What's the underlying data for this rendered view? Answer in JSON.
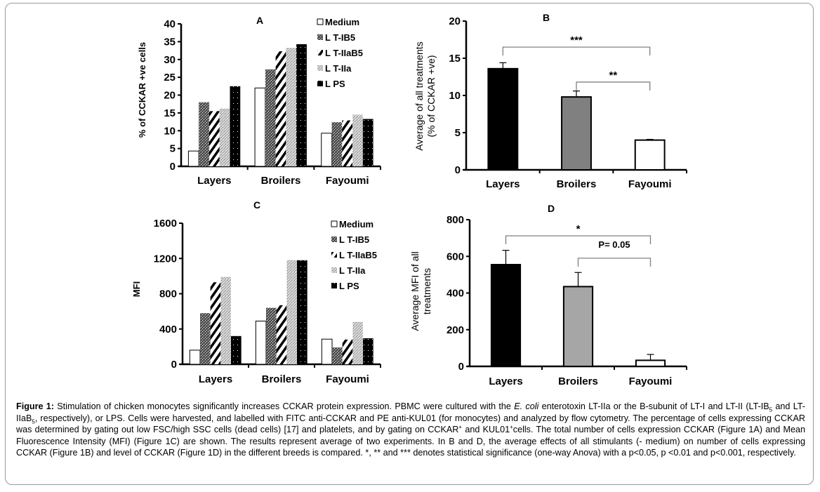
{
  "figure": {
    "caption": {
      "label": "Figure 1:",
      "p1": " Stimulation of chicken monocytes significantly increases CCKAR protein expression. PBMC were cultured with the ",
      "italic": "E. coli",
      "p2": " enterotoxin LT-IIa or the B-subunit of LT-I and LT-II (LT-IB",
      "sub1": "5",
      "p3": " and LT-IIaB",
      "sub2": "5",
      "p4": ", respectively), or LPS. Cells were harvested, and labelled with FITC anti-CCKAR and PE anti-KUL01 (for monocytes) and analyzed by flow cytometry. The percentage of cells expressing CCKAR was determined by gating out low FSC/high SSC cells (dead cells) [17] and platelets, and by gating on CCKAR",
      "sup1": "+",
      "p5": " and KUL01",
      "sup2": "+",
      "p6": "cells. The total number of cells expression CCKAR (Figure 1A) and Mean Fluorescence Intensity (MFI) (Figure 1C) are shown. The results represent average of two experiments. In B and D, the average effects of all stimulants (- medium) on number of cells expressing CCKAR (Figure 1B) and level of CCKAR (Figure 1D) in the different breeds is compared. *, ** and *** denotes statistical significance (one-way Anova) with a p<0.05, p <0.01 and p<0.001, respectively."
    }
  },
  "colors": {
    "black_bar": "#000000",
    "gray_bar_B": "#808080",
    "gray_bar_D": "#a6a6a6",
    "bracket": "#808080",
    "frame": "#9a9a9a"
  },
  "chart_data": [
    {
      "panel": "A",
      "type": "bar",
      "title": "A",
      "xlabel": "",
      "ylabel": "% of CCKAR +ve cells",
      "ylim": [
        0,
        40
      ],
      "yticks": [
        0,
        5,
        10,
        15,
        20,
        25,
        30,
        35,
        40
      ],
      "categories": [
        "Layers",
        "Broilers",
        "Fayoumi"
      ],
      "legend_position": "top-right",
      "series": [
        {
          "name": "Medium",
          "pattern": "white",
          "values": [
            4.3,
            22.0,
            9.3
          ]
        },
        {
          "name": "LT-IB5",
          "pattern": "dark-checker",
          "values": [
            18.0,
            27.2,
            12.4
          ]
        },
        {
          "name": "LT-IIaB5",
          "pattern": "diagonal",
          "values": [
            15.5,
            32.3,
            12.9
          ]
        },
        {
          "name": "LT-IIa",
          "pattern": "light-checker",
          "values": [
            16.2,
            33.3,
            14.5
          ]
        },
        {
          "name": "LPS",
          "pattern": "black-dotted",
          "values": [
            22.5,
            34.3,
            13.3
          ]
        }
      ],
      "legend_labels": [
        "Medium",
        "L T-IB5",
        "L T-IIaB5",
        "L T-IIa",
        "L PS"
      ]
    },
    {
      "panel": "B",
      "type": "bar",
      "title": "B",
      "xlabel": "",
      "ylabel": [
        "Average of all treatments",
        "(% of CCKAR +ve)"
      ],
      "ylim": [
        0,
        20
      ],
      "yticks": [
        0,
        5,
        10,
        15,
        20
      ],
      "categories": [
        "Layers",
        "Broilers",
        "Fayoumi"
      ],
      "values": [
        13.6,
        9.8,
        4.0
      ],
      "errors": [
        0.8,
        0.8,
        0.1
      ],
      "bar_fills": [
        "#000000",
        "#808080",
        "#ffffff"
      ],
      "annotations": [
        {
          "text": "***",
          "from": "Layers",
          "to": "Fayoumi",
          "level": 16.5
        },
        {
          "text": "**",
          "from": "Broilers",
          "to": "Fayoumi",
          "level": 11.8
        }
      ]
    },
    {
      "panel": "C",
      "type": "bar",
      "title": "C",
      "xlabel": "",
      "ylabel": "MFI",
      "ylim": [
        0,
        1600
      ],
      "yticks": [
        0,
        400,
        800,
        1200,
        1600
      ],
      "categories": [
        "Layers",
        "Broilers",
        "Fayoumi"
      ],
      "legend_position": "top-right",
      "series": [
        {
          "name": "Medium",
          "pattern": "white",
          "values": [
            160,
            490,
            285
          ]
        },
        {
          "name": "LT-IB5",
          "pattern": "dark-checker",
          "values": [
            580,
            640,
            190
          ]
        },
        {
          "name": "LT-IIaB5",
          "pattern": "diagonal",
          "values": [
            930,
            670,
            280
          ]
        },
        {
          "name": "LT-IIa",
          "pattern": "light-checker",
          "values": [
            990,
            1180,
            480
          ]
        },
        {
          "name": "LPS",
          "pattern": "black-dotted",
          "values": [
            320,
            1180,
            295
          ]
        }
      ],
      "legend_labels": [
        "Medium",
        "L T-IB5",
        "L T-IIaB5",
        "L T-IIa",
        "L PS"
      ]
    },
    {
      "panel": "D",
      "type": "bar",
      "title": "D",
      "xlabel": "",
      "ylabel": [
        "Average MFI of all",
        "treatments"
      ],
      "ylim": [
        0,
        800
      ],
      "yticks": [
        0,
        200,
        400,
        600,
        800
      ],
      "categories": [
        "Layers",
        "Broilers",
        "Fayoumi"
      ],
      "values": [
        555,
        435,
        33
      ],
      "errors": [
        78,
        77,
        32
      ],
      "bar_fills": [
        "#000000",
        "#a6a6a6",
        "#ffffff"
      ],
      "annotations": [
        {
          "text": "*",
          "from": "Layers",
          "to": "Fayoumi",
          "level": 712
        },
        {
          "text": "P= 0.05",
          "from": "Broilers",
          "to": "Fayoumi",
          "level": 590
        }
      ]
    }
  ]
}
